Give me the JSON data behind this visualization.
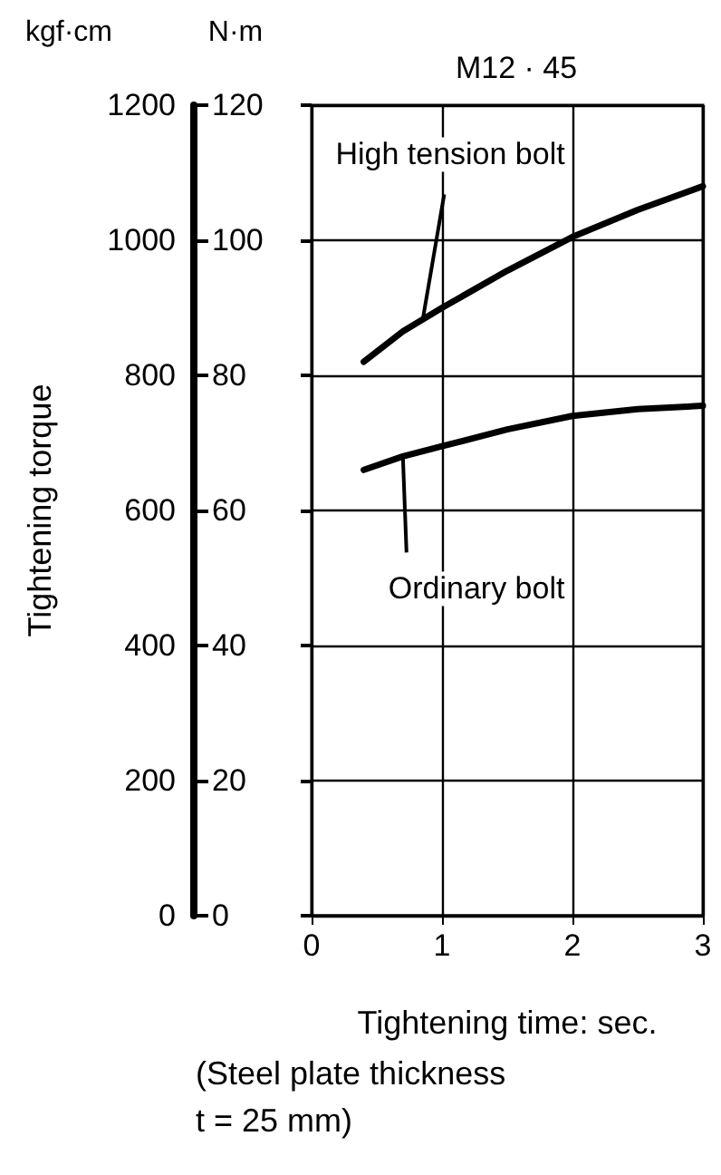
{
  "chart_data": {
    "type": "line",
    "title": "M12 · 45",
    "xlabel": "Tightening time: sec.",
    "ylabel": "Tightening torque",
    "annotations": [
      {
        "text": "High tension bolt",
        "x": 0.85,
        "y": 880
      },
      {
        "text": "Ordinary bolt",
        "x": 0.7,
        "y": 680
      },
      "kgf·cm",
      "N·m",
      "(Steel plate thickness\nt = 25 mm)"
    ],
    "series": [
      {
        "color": "#000000",
        "axis": "y2",
        "x": [
          0.4,
          0.7,
          1,
          1.5,
          2,
          2.5,
          3
        ],
        "values": [
          82,
          86.5,
          90,
          95.5,
          100.5,
          104.5,
          108
        ]
      },
      {
        "color": "#000000",
        "axis": "y2",
        "x": [
          0.4,
          0.7,
          1,
          1.5,
          2,
          2.5,
          3
        ],
        "values": [
          66,
          68,
          69.5,
          72,
          74,
          75,
          75.5
        ]
      }
    ],
    "xlim": [
      0,
      3
    ],
    "xticks": [
      0,
      1,
      2,
      3
    ],
    "ylim": [
      0,
      1200
    ],
    "yticks": [
      0,
      200,
      400,
      600,
      800,
      1000,
      1200
    ],
    "y2lim": [
      0,
      120
    ],
    "y2ticks": [
      0,
      20,
      40,
      60,
      80,
      100,
      120
    ],
    "grid": true,
    "marker": "none",
    "line_style": "solid"
  }
}
